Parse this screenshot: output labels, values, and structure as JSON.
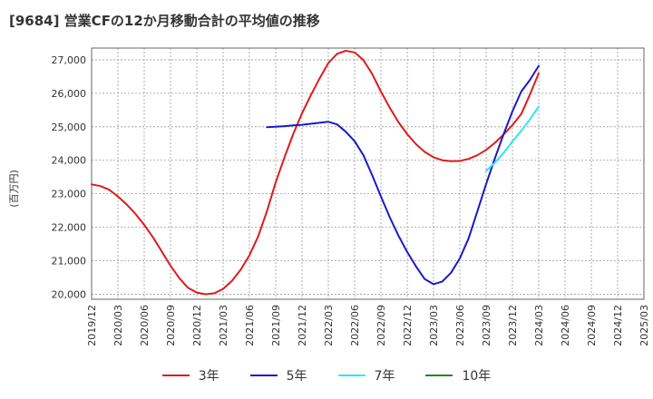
{
  "chart_data": {
    "type": "line",
    "title": "[9684]  営業CFの12か月移動合計の平均値の推移",
    "ylabel": "(百万円)",
    "xlabel": "",
    "ylim": [
      19850,
      27350
    ],
    "xlim": [
      "2019/12",
      "2025/03"
    ],
    "yticks": [
      20000,
      21000,
      22000,
      23000,
      24000,
      25000,
      26000,
      27000
    ],
    "ytick_labels": [
      "20,000",
      "21,000",
      "22,000",
      "23,000",
      "24,000",
      "25,000",
      "26,000",
      "27,000"
    ],
    "xtick_labels": [
      "2019/12",
      "2020/03",
      "2020/06",
      "2020/09",
      "2020/12",
      "2021/03",
      "2021/06",
      "2021/09",
      "2021/12",
      "2022/03",
      "2022/06",
      "2022/09",
      "2022/12",
      "2023/03",
      "2023/06",
      "2023/09",
      "2023/12",
      "2024/03",
      "2024/06",
      "2024/09",
      "2024/12",
      "2025/03"
    ],
    "grid": true,
    "legend_position": "bottom",
    "series": [
      {
        "name": "3年",
        "color": "#dd1c1c",
        "x": [
          "2019/12",
          "2020/01",
          "2020/02",
          "2020/03",
          "2020/04",
          "2020/05",
          "2020/06",
          "2020/07",
          "2020/08",
          "2020/09",
          "2020/10",
          "2020/11",
          "2020/12",
          "2021/01",
          "2021/02",
          "2021/03",
          "2021/04",
          "2021/05",
          "2021/06",
          "2021/07",
          "2021/08",
          "2021/09",
          "2021/10",
          "2021/11",
          "2021/12",
          "2022/01",
          "2022/02",
          "2022/03",
          "2022/04",
          "2022/05",
          "2022/06",
          "2022/07",
          "2022/08",
          "2022/09",
          "2022/10",
          "2022/11",
          "2022/12",
          "2023/01",
          "2023/02",
          "2023/03",
          "2023/04",
          "2023/05",
          "2023/06",
          "2023/07",
          "2023/08",
          "2023/09",
          "2023/10",
          "2023/11",
          "2023/12",
          "2024/01",
          "2024/02",
          "2024/03"
        ],
        "values": [
          23280,
          23230,
          23120,
          22920,
          22680,
          22400,
          22070,
          21700,
          21280,
          20850,
          20480,
          20190,
          20050,
          20000,
          20030,
          20160,
          20400,
          20730,
          21160,
          21730,
          22480,
          23340,
          24090,
          24780,
          25400,
          25940,
          26440,
          26900,
          27180,
          27270,
          27220,
          26990,
          26580,
          26050,
          25570,
          25140,
          24780,
          24480,
          24250,
          24090,
          24000,
          23970,
          23980,
          24040,
          24150,
          24310,
          24520,
          24770,
          25050,
          25380,
          25960,
          26600
        ]
      },
      {
        "name": "5年",
        "color": "#1a1acc",
        "x": [
          "2021/08",
          "2021/09",
          "2021/10",
          "2021/11",
          "2021/12",
          "2022/01",
          "2022/02",
          "2022/03",
          "2022/04",
          "2022/05",
          "2022/06",
          "2022/07",
          "2022/08",
          "2022/09",
          "2022/10",
          "2022/11",
          "2022/12",
          "2023/01",
          "2023/02",
          "2023/03",
          "2023/04",
          "2023/05",
          "2023/06",
          "2023/07",
          "2023/08",
          "2023/09",
          "2023/10",
          "2023/11",
          "2023/12",
          "2024/01",
          "2024/02",
          "2024/03"
        ],
        "values": [
          24990,
          25000,
          25020,
          25040,
          25060,
          25090,
          25120,
          25150,
          25070,
          24850,
          24570,
          24150,
          23560,
          22920,
          22300,
          21750,
          21260,
          20830,
          20450,
          20300,
          20380,
          20640,
          21070,
          21670,
          22470,
          23290,
          24060,
          24780,
          25460,
          26050,
          26400,
          26820
        ]
      },
      {
        "name": "7年",
        "color": "#2de6f0",
        "x": [
          "2023/09",
          "2023/10",
          "2023/11",
          "2023/12",
          "2024/01",
          "2024/02",
          "2024/03"
        ],
        "values": [
          23680,
          23930,
          24220,
          24560,
          24880,
          25220,
          25600
        ]
      },
      {
        "name": "10年",
        "color": "#1f8a1f",
        "x": [],
        "values": []
      }
    ]
  }
}
